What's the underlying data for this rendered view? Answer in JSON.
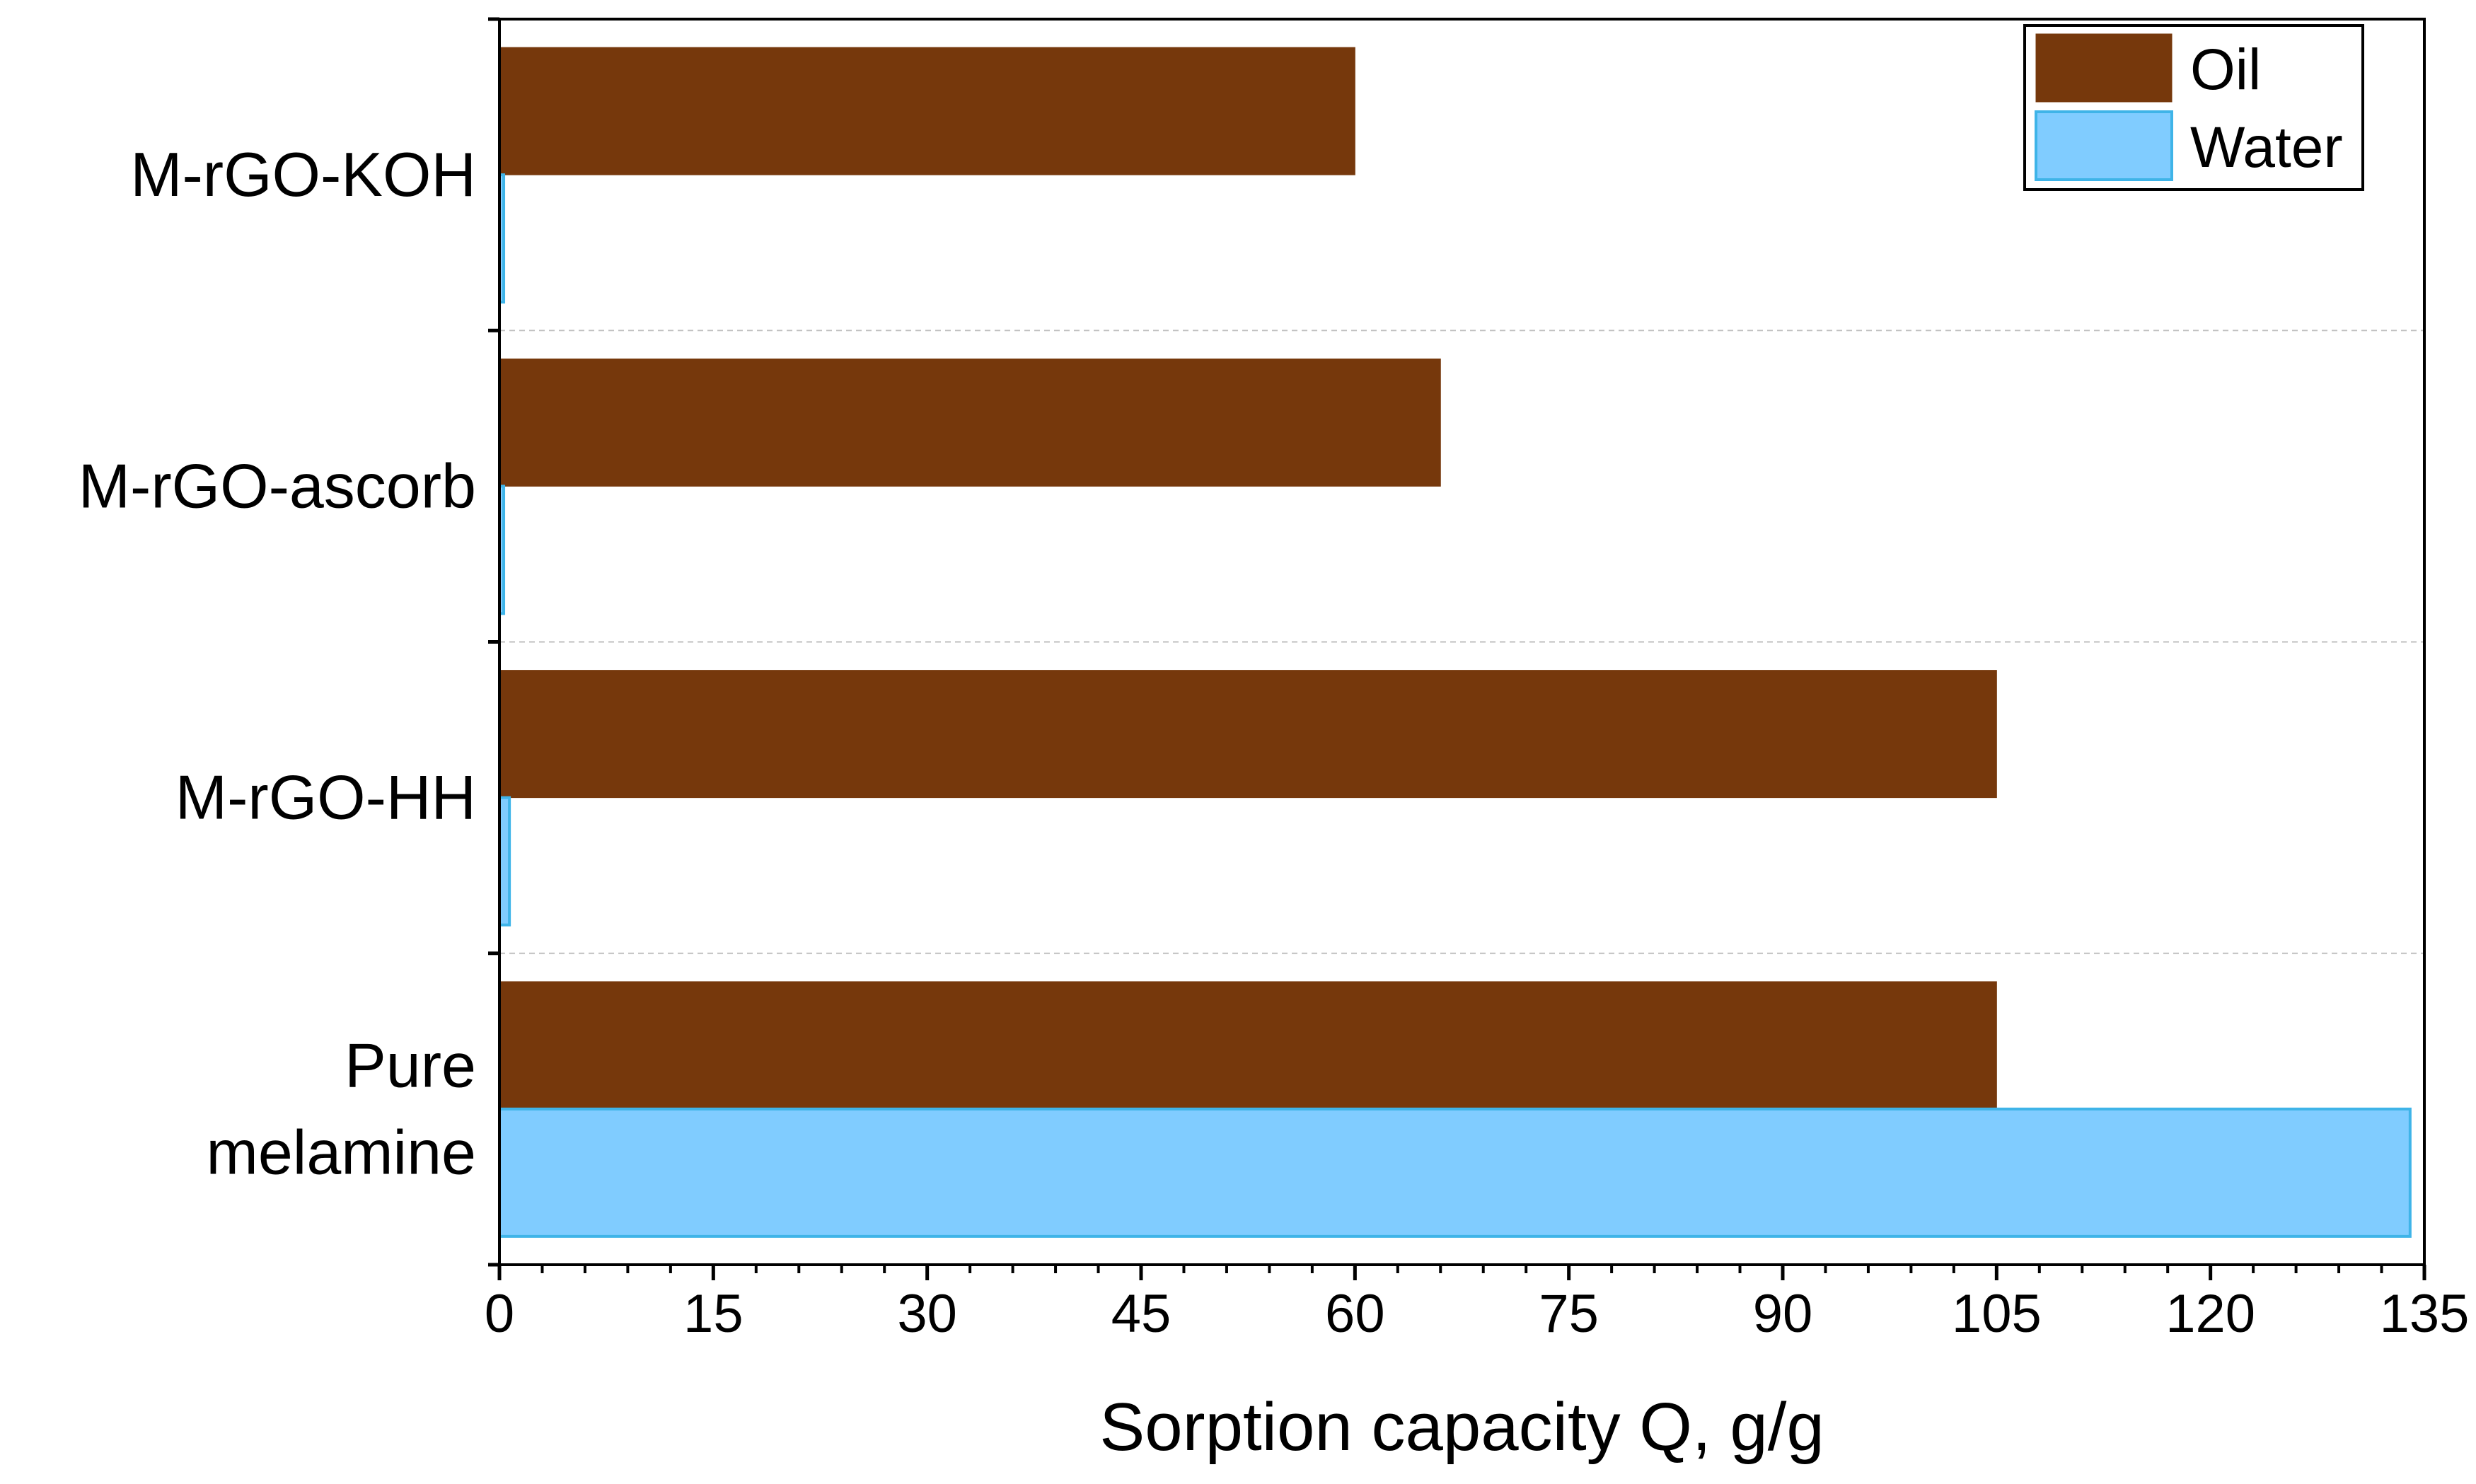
{
  "chart_data": {
    "type": "bar",
    "orientation": "horizontal",
    "title": "",
    "xlabel": "Sorption capacity Q, g/g",
    "ylabel": "",
    "xlim": [
      0,
      135
    ],
    "x_ticks": [
      0,
      15,
      30,
      45,
      60,
      75,
      90,
      105,
      120,
      135
    ],
    "categories": [
      "Pure melamine",
      "M-rGO-HH",
      "M-rGO-ascorb",
      "M-rGO-KOH"
    ],
    "category_lines": [
      [
        "Pure",
        "melamine"
      ],
      [
        "M-rGO-HH"
      ],
      [
        "M-rGO-ascorb"
      ],
      [
        "M-rGO-KOH"
      ]
    ],
    "series": [
      {
        "name": "Oil",
        "color": "#76380C",
        "edge": "#76380C",
        "values": [
          105,
          105,
          66,
          60
        ]
      },
      {
        "name": "Water",
        "color": "#80CCFF",
        "edge": "#3FB4E8",
        "values": [
          134,
          0.7,
          0.3,
          0.3
        ]
      }
    ],
    "grid": "horizontal-dashed-between-categories",
    "legend": {
      "position": "top-right",
      "entries": [
        "Oil",
        "Water"
      ]
    }
  }
}
